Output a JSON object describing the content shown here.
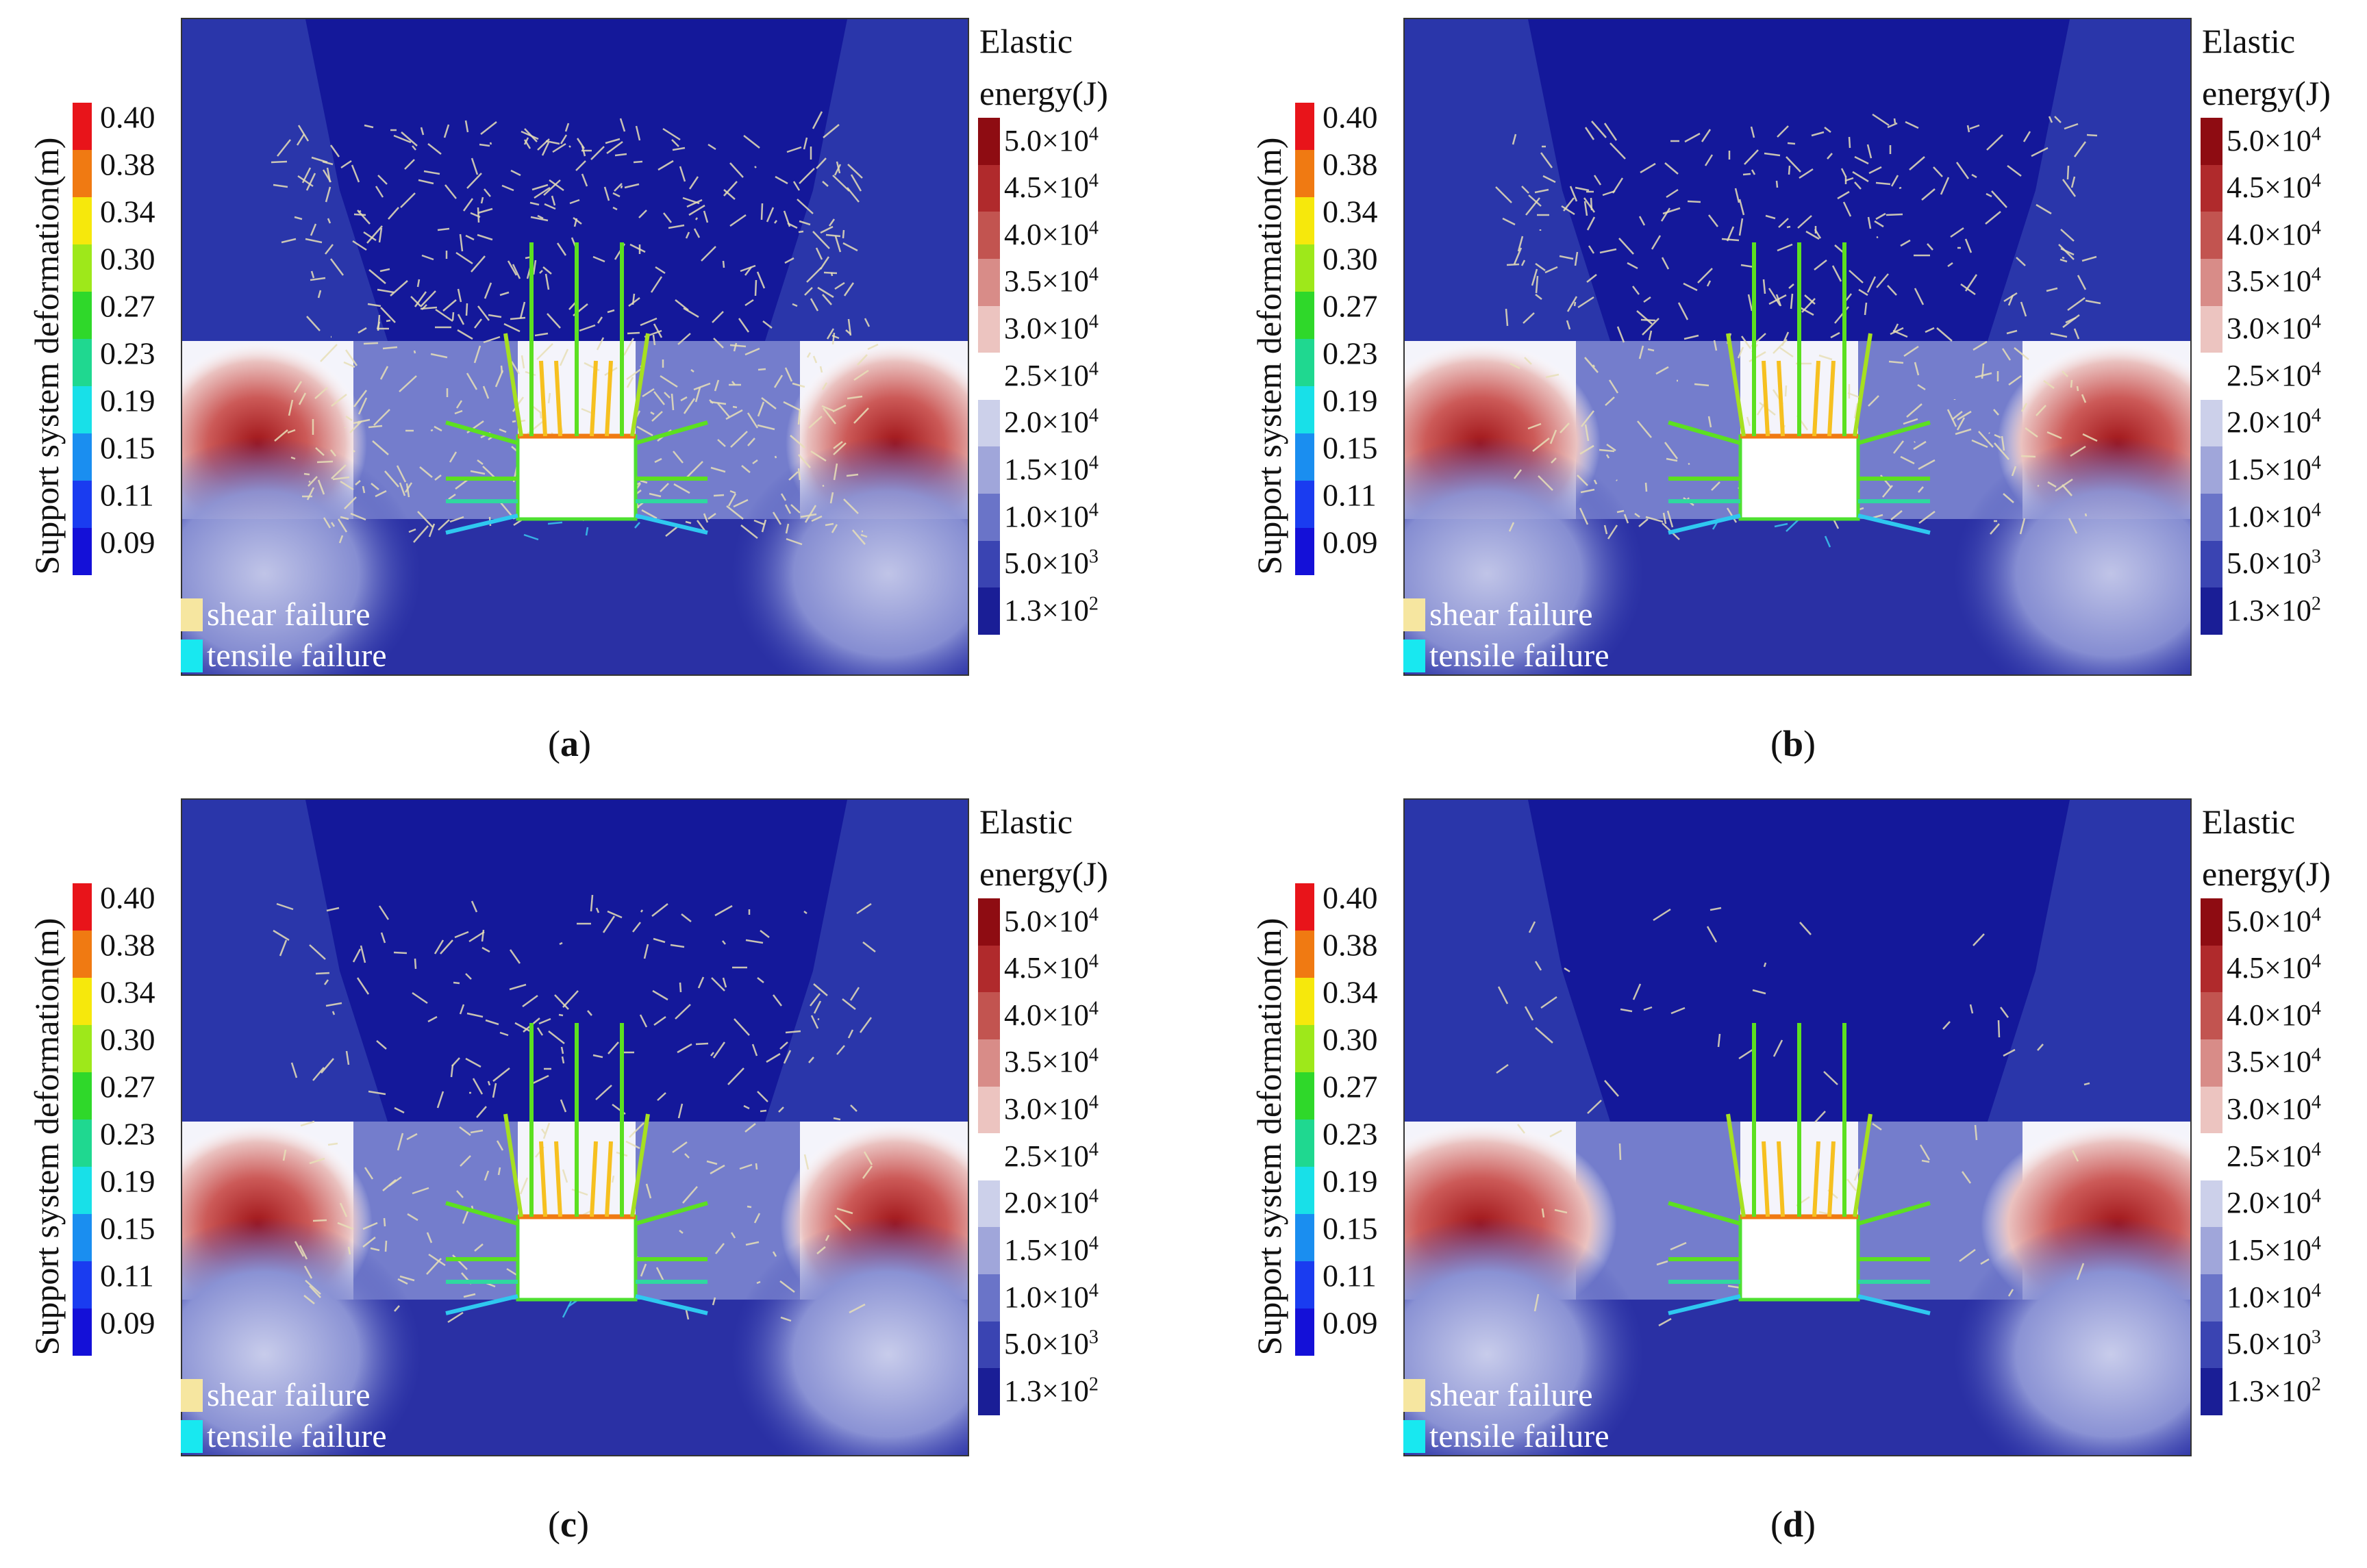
{
  "deformation_legend": {
    "title": "Support system deformation(m)",
    "labels": [
      "0.40",
      "0.38",
      "0.34",
      "0.30",
      "0.27",
      "0.23",
      "0.19",
      "0.15",
      "0.11",
      "0.09"
    ],
    "colors": [
      "#e8141a",
      "#f07a12",
      "#f6e80c",
      "#9ee81a",
      "#2fd82a",
      "#1fd890",
      "#18e0e8",
      "#1a8ef0",
      "#1a3cf0",
      "#1410d8"
    ]
  },
  "energy_legend": {
    "title_line1": "Elastic",
    "title_line2": "energy(J)",
    "labels": [
      {
        "mant": "5.0×10",
        "exp": "4"
      },
      {
        "mant": "4.5×10",
        "exp": "4"
      },
      {
        "mant": "4.0×10",
        "exp": "4"
      },
      {
        "mant": "3.5×10",
        "exp": "4"
      },
      {
        "mant": "3.0×10",
        "exp": "4"
      },
      {
        "mant": "2.5×10",
        "exp": "4"
      },
      {
        "mant": "2.0×10",
        "exp": "4"
      },
      {
        "mant": "1.5×10",
        "exp": "4"
      },
      {
        "mant": "1.0×10",
        "exp": "4"
      },
      {
        "mant": "5.0×10",
        "exp": "3"
      },
      {
        "mant": "1.3×10",
        "exp": "2"
      }
    ],
    "colors": [
      "#8e0c12",
      "#b02a2c",
      "#c25450",
      "#d88c88",
      "#ecc4c0",
      "#ffffff",
      "#ccd0ea",
      "#a0a6da",
      "#6a74c8",
      "#3a44b2",
      "#1a1e96"
    ]
  },
  "failure_legend": {
    "shear": "shear failure",
    "tensile": "tensile failure",
    "shear_color": "#f6e6a0",
    "tensile_color": "#18e8f0"
  },
  "panels": [
    {
      "label": "a"
    },
    {
      "label": "b"
    },
    {
      "label": "c"
    },
    {
      "label": "d"
    }
  ]
}
